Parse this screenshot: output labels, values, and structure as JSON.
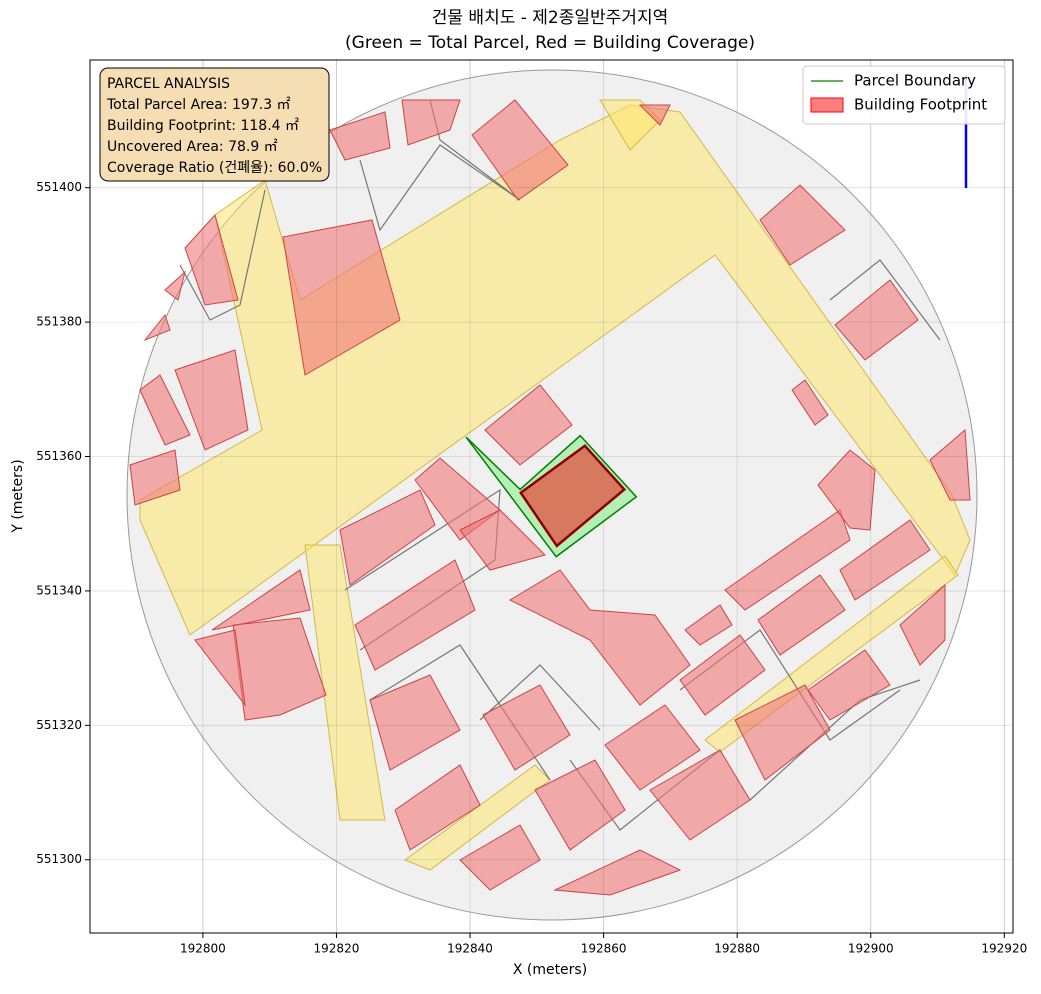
{
  "chart_data": {
    "type": "map",
    "title": "건물 배치도 - 제2종일반주거지역",
    "subtitle": "(Green = Total Parcel, Red = Building Coverage)",
    "xlabel": "X (meters)",
    "ylabel": "Y (meters)",
    "xlim": [
      192783.1,
      192921.3
    ],
    "ylim": [
      551289.1,
      551419.0
    ],
    "xticks": [
      192800,
      192820,
      192840,
      192860,
      192880,
      192900,
      192920
    ],
    "yticks": [
      551300,
      551320,
      551340,
      551360,
      551380,
      551400
    ],
    "grid": true,
    "legend": "upper right",
    "annotation": [
      "PARCEL ANALYSIS",
      "Total Parcel Area: 197.3 ㎡",
      "Building Footprint: 118.4 ㎡",
      "Uncovered Area: 78.9 ㎡",
      "Coverage Ratio (건폐율): 60.0%"
    ],
    "series": [
      {
        "name": "Parcel Boundary",
        "color": "#008000",
        "x": [
          192839.4,
          192847.5,
          192856.5,
          192864.9,
          192852.9
        ],
        "values": [
          551362.9,
          551355.1,
          551363.1,
          551354.0,
          551345.1
        ]
      },
      {
        "name": "Building Footprint",
        "color": "#ff0000",
        "x": [
          192847.6,
          192857.2,
          192863.1,
          192853.0
        ],
        "values": [
          551354.6,
          551361.6,
          551355.1,
          551346.7
        ]
      }
    ]
  }
}
